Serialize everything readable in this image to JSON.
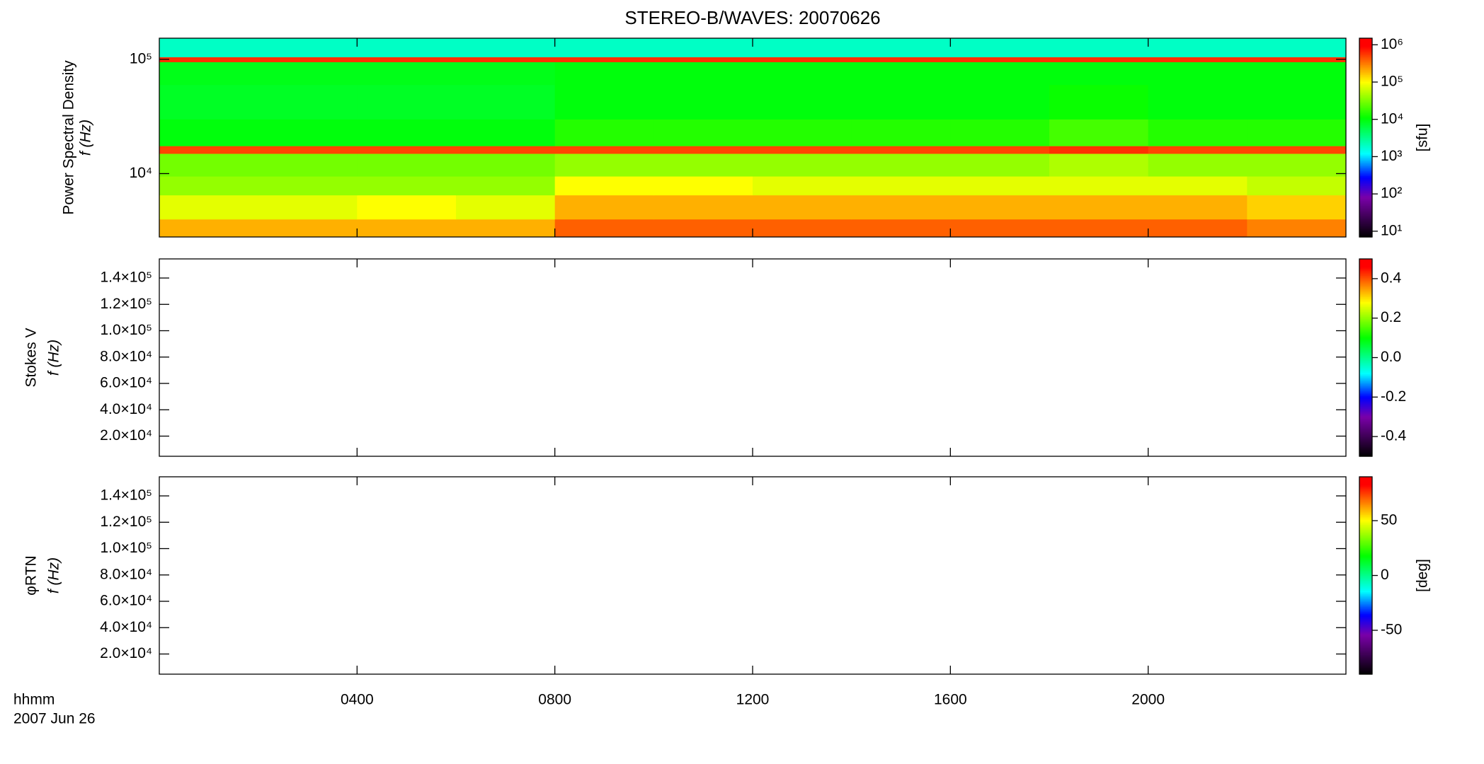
{
  "chart_data": [
    {
      "type": "heatmap",
      "title": "STEREO-B/WAVES: 20070626",
      "ylabel": [
        "Power Spectral Density",
        "f (Hz)"
      ],
      "ylog": true,
      "ylim": [
        2790,
        153000
      ],
      "yticks": [
        {
          "value": 10000,
          "label": "10⁴"
        },
        {
          "value": 100000,
          "label": "10⁵"
        }
      ],
      "xbins": [
        0,
        2,
        4,
        6,
        8,
        10,
        12,
        14,
        16,
        18,
        20,
        22,
        24
      ],
      "ybins": [
        2790,
        4000,
        6500,
        9500,
        15000,
        17500,
        30000,
        60000,
        95000,
        105000,
        153000
      ],
      "values": [
        [
          200000,
          200000,
          200000,
          200000,
          400000,
          400000,
          400000,
          400000,
          400000,
          400000,
          400000,
          300000
        ],
        [
          80000,
          80000,
          100000,
          80000,
          200000,
          200000,
          200000,
          200000,
          200000,
          200000,
          200000,
          150000
        ],
        [
          40000,
          40000,
          40000,
          40000,
          100000,
          100000,
          80000,
          80000,
          80000,
          80000,
          80000,
          60000
        ],
        [
          30000,
          30000,
          30000,
          30000,
          40000,
          40000,
          40000,
          40000,
          40000,
          50000,
          40000,
          40000
        ],
        [
          500000,
          500000,
          500000,
          500000,
          500000,
          500000,
          500000,
          500000,
          500000,
          600000,
          500000,
          500000
        ],
        [
          10000,
          10000,
          10000,
          10000,
          15000,
          15000,
          15000,
          15000,
          15000,
          20000,
          15000,
          15000
        ],
        [
          8000,
          8000,
          8000,
          8000,
          10000,
          10000,
          10000,
          10000,
          10000,
          12000,
          10000,
          10000
        ],
        [
          9000,
          9000,
          9000,
          9000,
          10000,
          10000,
          10000,
          10000,
          10000,
          10000,
          10000,
          10000
        ],
        [
          600000,
          600000,
          600000,
          600000,
          600000,
          600000,
          600000,
          600000,
          600000,
          600000,
          600000,
          600000
        ],
        [
          2000,
          2000,
          2000,
          2000,
          2000,
          2000,
          2000,
          2000,
          2000,
          2000,
          2000,
          2000
        ]
      ],
      "colormap": [
        [
          0,
          "#000000"
        ],
        [
          0.2,
          "#7a00a8"
        ],
        [
          0.3,
          "#0000ff"
        ],
        [
          0.42,
          "#00ffff"
        ],
        [
          0.6,
          "#00ff00"
        ],
        [
          0.78,
          "#ffff00"
        ],
        [
          0.96,
          "#ff0000"
        ],
        [
          1,
          "#ff0000"
        ]
      ],
      "colorbar": {
        "log": true,
        "lim": [
          7,
          1500000
        ],
        "label": "[sfu]",
        "ticks": [
          {
            "value": 10,
            "label": "10¹"
          },
          {
            "value": 100,
            "label": "10²"
          },
          {
            "value": 1000,
            "label": "10³"
          },
          {
            "value": 10000,
            "label": "10⁴"
          },
          {
            "value": 100000,
            "label": "10⁵"
          },
          {
            "value": 1000000,
            "label": "10⁶"
          }
        ]
      }
    },
    {
      "type": "heatmap",
      "ylabel": [
        "Stokes V",
        "f (Hz)"
      ],
      "ylim": [
        4700,
        154500
      ],
      "yticks": [
        {
          "value": 20000,
          "label": "2.0×10⁴"
        },
        {
          "value": 40000,
          "label": "4.0×10⁴"
        },
        {
          "value": 60000,
          "label": "6.0×10⁴"
        },
        {
          "value": 80000,
          "label": "8.0×10⁴"
        },
        {
          "value": 100000,
          "label": "1.0×10⁵"
        },
        {
          "value": 120000,
          "label": "1.2×10⁵"
        },
        {
          "value": 140000,
          "label": "1.4×10⁵"
        }
      ],
      "colorbar": {
        "lim": [
          -0.5,
          0.5
        ],
        "ticks": [
          -0.4,
          -0.2,
          {
            "value": 0,
            "label": "0.0"
          },
          0.2,
          0.4
        ]
      }
    },
    {
      "type": "heatmap",
      "ylabel": [
        "φRTN",
        "f (Hz)"
      ],
      "ylim": [
        4700,
        154500
      ],
      "yticks": [
        {
          "value": 20000,
          "label": "2.0×10⁴"
        },
        {
          "value": 40000,
          "label": "4.0×10⁴"
        },
        {
          "value": 60000,
          "label": "6.0×10⁴"
        },
        {
          "value": 80000,
          "label": "8.0×10⁴"
        },
        {
          "value": 100000,
          "label": "1.0×10⁵"
        },
        {
          "value": 120000,
          "label": "1.2×10⁵"
        },
        {
          "value": 140000,
          "label": "1.4×10⁵"
        }
      ],
      "colorbar": {
        "lim": [
          -90,
          90
        ],
        "label": "[deg]",
        "ticks": [
          -50,
          0,
          50
        ]
      },
      "xlim": [
        0,
        24
      ],
      "xticks": [
        {
          "value": 4,
          "label": "0400"
        },
        {
          "value": 8,
          "label": "0800"
        },
        {
          "value": 12,
          "label": "1200"
        },
        {
          "value": 16,
          "label": "1600"
        },
        {
          "value": 20,
          "label": "2000"
        }
      ],
      "xlabel": [
        "hhmm",
        "2007 Jun 26"
      ]
    }
  ]
}
